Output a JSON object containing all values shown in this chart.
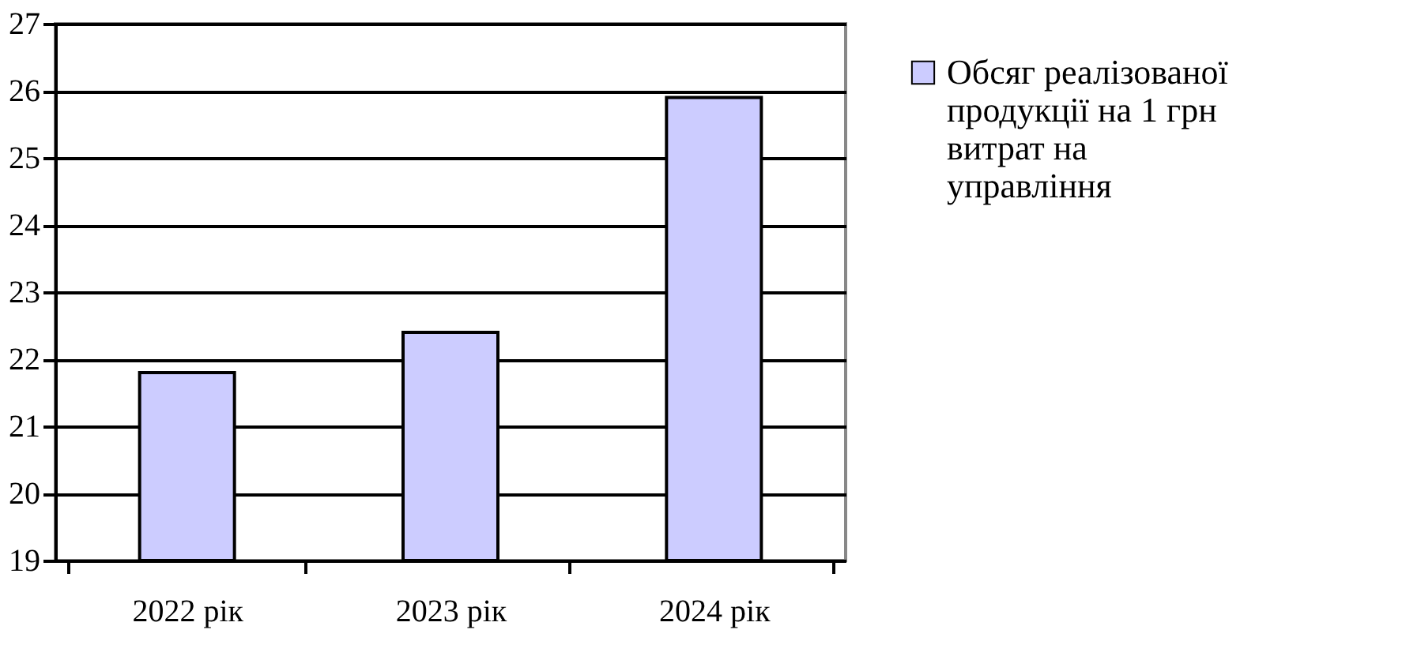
{
  "chart_data": {
    "type": "bar",
    "categories": [
      "2022 рік",
      "2023 рік",
      "2024 рік"
    ],
    "series": [
      {
        "name": "Обсяг реалізованої продукції на 1 грн витрат на управління",
        "color": "#ccccff",
        "values": [
          21.8,
          22.4,
          25.9
        ]
      }
    ],
    "ylim": [
      19,
      27
    ],
    "yticks": [
      19,
      20,
      21,
      22,
      23,
      24,
      25,
      26,
      27
    ],
    "grid": "y",
    "legend": "right"
  }
}
